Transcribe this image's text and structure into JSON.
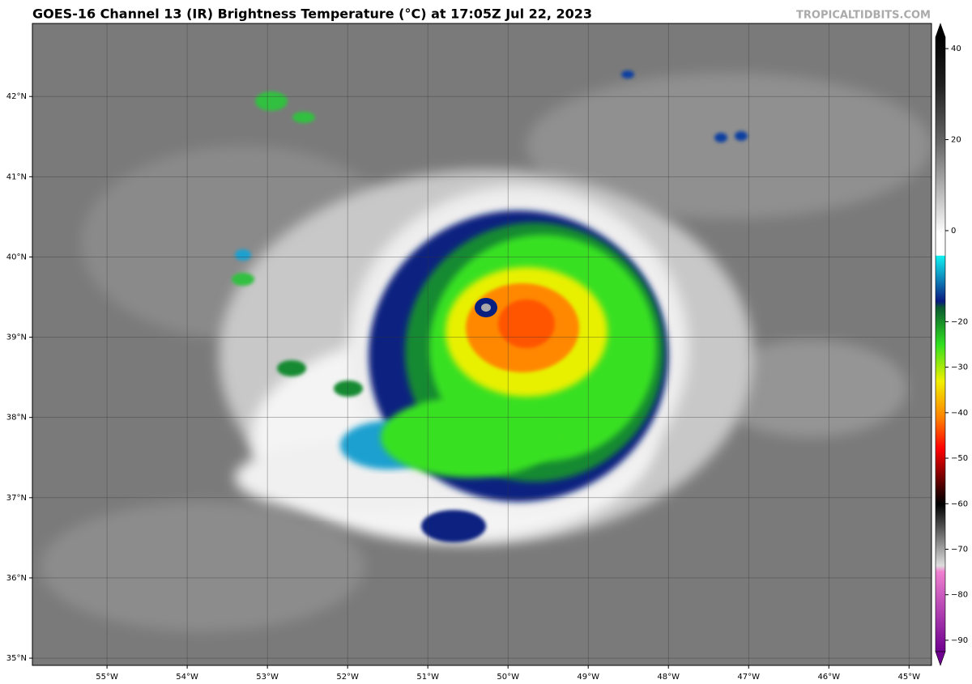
{
  "header": {
    "title": "GOES-16 Channel 13 (IR) Brightness Temperature (°C) at 17:05Z Jul 22, 2023",
    "credit": "TROPICALTIDBITS.COM"
  },
  "map": {
    "lonlim": [
      -55.93,
      -44.72
    ],
    "latlim": [
      34.91,
      42.91
    ],
    "lon_ticks": [
      {
        "value": -55,
        "label": "55°W"
      },
      {
        "value": -54,
        "label": "54°W"
      },
      {
        "value": -53,
        "label": "53°W"
      },
      {
        "value": -52,
        "label": "52°W"
      },
      {
        "value": -51,
        "label": "51°W"
      },
      {
        "value": -50,
        "label": "50°W"
      },
      {
        "value": -49,
        "label": "49°W"
      },
      {
        "value": -48,
        "label": "48°W"
      },
      {
        "value": -47,
        "label": "47°W"
      },
      {
        "value": -46,
        "label": "46°W"
      },
      {
        "value": -45,
        "label": "45°W"
      }
    ],
    "lat_ticks": [
      {
        "value": 35,
        "label": "35°N"
      },
      {
        "value": 36,
        "label": "36°N"
      },
      {
        "value": 37,
        "label": "37°N"
      },
      {
        "value": 38,
        "label": "38°N"
      },
      {
        "value": 39,
        "label": "39°N"
      },
      {
        "value": 40,
        "label": "40°N"
      },
      {
        "value": 41,
        "label": "41°N"
      },
      {
        "value": 42,
        "label": "42°N"
      }
    ]
  },
  "colorbar": {
    "lim": [
      -92.5,
      42.5
    ],
    "ticks": [
      40,
      20,
      0,
      {
        "value": -20,
        "label": "−20"
      },
      {
        "value": -30,
        "label": "−30"
      },
      {
        "value": -40,
        "label": "−40"
      },
      {
        "value": -50,
        "label": "−50"
      },
      {
        "value": -60,
        "label": "−60"
      },
      {
        "value": -70,
        "label": "−70"
      },
      {
        "value": -80,
        "label": "−80"
      },
      {
        "value": -90,
        "label": "−90"
      }
    ]
  }
}
